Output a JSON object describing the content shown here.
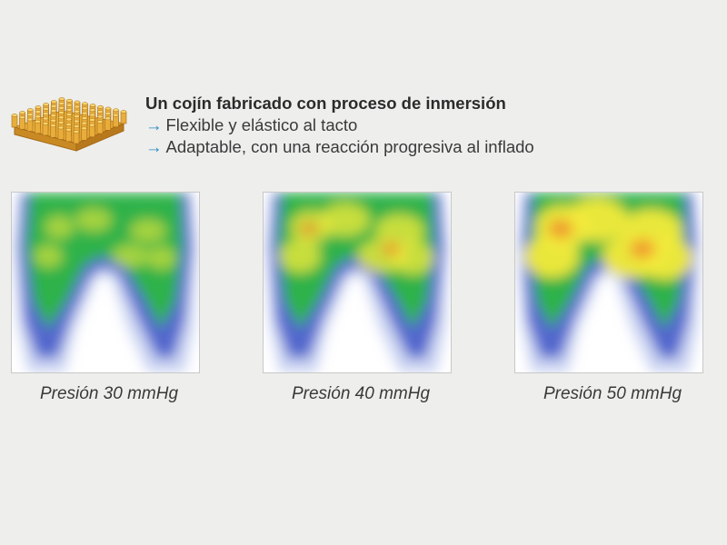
{
  "product": {
    "image_name": "air-cell-cushion-image",
    "title": "Un cojín fabricado con proceso de inmersión",
    "features": [
      {
        "arrow": "→",
        "text": "Flexible y elástico al tacto"
      },
      {
        "arrow": "→",
        "text": "Adaptable, con una reacción progresiva al inflado"
      }
    ]
  },
  "pressure_maps": [
    {
      "caption": "Presión 30 mmHg",
      "pressure_mmhg": 30
    },
    {
      "caption": "Presión 40 mmHg",
      "pressure_mmhg": 40
    },
    {
      "caption": "Presión 50 mmHg",
      "pressure_mmhg": 50
    }
  ],
  "colors": {
    "accent_arrow": "#2a8fc4",
    "cushion": "#e8ad3a",
    "heat_low": "#3e55c8",
    "heat_mid": "#2fb24a",
    "heat_high": "#f3ea3a",
    "heat_peak": "#f08a2a"
  }
}
